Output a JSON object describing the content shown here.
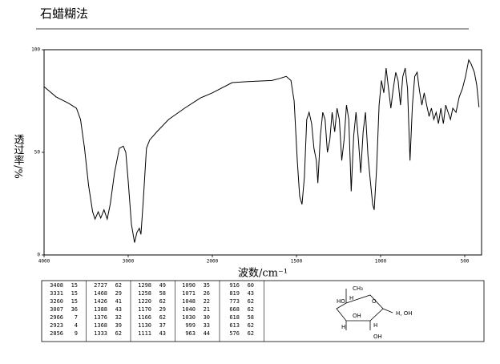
{
  "header": {
    "title": "石蜡糊法"
  },
  "chart_data": {
    "type": "line",
    "xlabel": "波数/cm⁻¹",
    "ylabel": "透过率/%",
    "x": [
      4000,
      3856,
      3712,
      3615,
      3567,
      3519,
      3471,
      3423,
      3394,
      3356,
      3327,
      3288,
      3250,
      3212,
      3163,
      3106,
      3058,
      3029,
      3000,
      2962,
      2925,
      2896,
      2868,
      2849,
      2821,
      2783,
      2745,
      2660,
      2519,
      2330,
      2142,
      2000,
      1882,
      1788,
      1646,
      1599,
      1561,
      1533,
      1514,
      1495,
      1481,
      1467,
      1453,
      1439,
      1425,
      1410,
      1396,
      1382,
      1373,
      1358,
      1344,
      1330,
      1316,
      1302,
      1288,
      1273,
      1259,
      1245,
      1231,
      1217,
      1203,
      1189,
      1175,
      1160,
      1146,
      1132,
      1118,
      1104,
      1090,
      1075,
      1061,
      1047,
      1038,
      1024,
      1009,
      995,
      981,
      967,
      953,
      939,
      925,
      910,
      896,
      882,
      868,
      854,
      840,
      825,
      811,
      797,
      783,
      769,
      755,
      741,
      726,
      712,
      698,
      684,
      670,
      656,
      642,
      627,
      613,
      599,
      585,
      571,
      552,
      533,
      514,
      495,
      476,
      462,
      443,
      429,
      415
    ],
    "values": [
      82,
      77,
      74,
      71.5,
      66,
      52,
      34,
      21,
      17.5,
      21,
      18,
      22,
      17.5,
      25,
      40,
      52,
      53,
      50,
      36,
      15,
      6,
      11,
      13,
      10,
      26.5,
      52,
      56,
      60,
      66,
      71.5,
      76.5,
      79,
      84,
      84.5,
      85,
      86,
      87,
      85,
      75,
      46,
      28.5,
      24.6,
      38,
      66,
      69.5,
      64,
      52,
      46,
      35,
      58,
      69.5,
      66,
      50,
      56,
      69.5,
      60,
      71.5,
      66,
      46,
      56,
      73,
      66,
      31,
      58,
      69.5,
      56,
      40,
      60,
      69.5,
      48,
      36,
      24.6,
      22,
      42,
      73,
      85,
      79,
      91,
      81,
      71.5,
      81,
      89,
      85,
      73,
      87,
      91,
      81,
      46,
      73,
      87,
      89,
      80,
      73,
      79,
      73,
      67.5,
      71.5,
      66,
      69.5,
      64,
      71.5,
      64,
      73,
      69.5,
      66,
      71.5,
      69.5,
      77,
      81,
      87,
      95,
      93,
      89,
      83,
      72
    ],
    "color": "#000000",
    "xlim": [
      4000,
      400
    ],
    "xticks": [
      4000,
      3000,
      2000,
      1500,
      1000,
      500
    ],
    "ylim": [
      0,
      100
    ],
    "yticks": [
      0,
      50,
      100
    ]
  },
  "peak_table": {
    "rows": [
      [
        [
          3408,
          15
        ],
        [
          2727,
          62
        ],
        [
          1298,
          49
        ],
        [
          1090,
          35
        ],
        [
          916,
          60
        ]
      ],
      [
        [
          3331,
          15
        ],
        [
          1468,
          29
        ],
        [
          1258,
          58
        ],
        [
          1071,
          26
        ],
        [
          819,
          43
        ]
      ],
      [
        [
          3260,
          15
        ],
        [
          1426,
          41
        ],
        [
          1220,
          62
        ],
        [
          1048,
          22
        ],
        [
          773,
          62
        ]
      ],
      [
        [
          3007,
          36
        ],
        [
          1388,
          43
        ],
        [
          1170,
          29
        ],
        [
          1040,
          21
        ],
        [
          668,
          62
        ]
      ],
      [
        [
          2966,
          7
        ],
        [
          1376,
          32
        ],
        [
          1166,
          62
        ],
        [
          1030,
          30
        ],
        [
          618,
          58
        ]
      ],
      [
        [
          2923,
          4
        ],
        [
          1368,
          39
        ],
        [
          1130,
          37
        ],
        [
          999,
          33
        ],
        [
          613,
          62
        ]
      ],
      [
        [
          2856,
          9
        ],
        [
          1333,
          62
        ],
        [
          1111,
          43
        ],
        [
          963,
          44
        ],
        [
          576,
          62
        ]
      ]
    ]
  },
  "structure": {
    "labels": [
      "CH₃",
      "HO",
      "H",
      "O",
      "OH",
      "H",
      "H",
      "OH",
      "H, OH"
    ]
  }
}
